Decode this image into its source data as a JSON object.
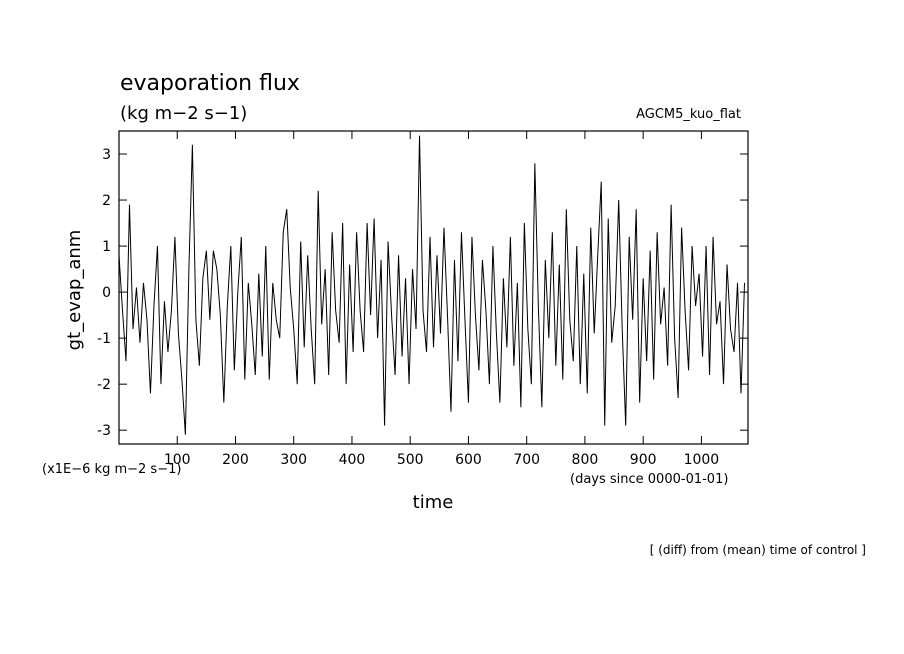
{
  "chart_data": {
    "type": "line",
    "title": "evaporation flux",
    "subtitle": "(kg m−2 s−1)",
    "annotation_right": "AGCM5_kuo_flat",
    "y_label": "gt_evap_anm",
    "x_label": "time",
    "y_unit_note": "(x1E−6 kg m−2 s−1)",
    "x_unit_note": "(days since 0000-01-01)",
    "footnote": "[ (diff) from (mean) time of control ]",
    "xlim": [
      0,
      1080
    ],
    "ylim": [
      -3.3,
      3.5
    ],
    "xticks": [
      100,
      200,
      300,
      400,
      500,
      600,
      700,
      800,
      900,
      1000
    ],
    "yticks": [
      -3,
      -2,
      -1,
      0,
      1,
      2,
      3
    ],
    "x": [
      0,
      6,
      12,
      18,
      24,
      30,
      36,
      42,
      48,
      54,
      60,
      66,
      72,
      78,
      84,
      90,
      96,
      102,
      108,
      114,
      120,
      126,
      132,
      138,
      144,
      150,
      156,
      162,
      168,
      174,
      180,
      186,
      192,
      198,
      204,
      210,
      216,
      222,
      228,
      234,
      240,
      246,
      252,
      258,
      264,
      270,
      276,
      282,
      288,
      294,
      300,
      306,
      312,
      318,
      324,
      330,
      336,
      342,
      348,
      354,
      360,
      366,
      372,
      378,
      384,
      390,
      396,
      402,
      408,
      414,
      420,
      426,
      432,
      438,
      444,
      450,
      456,
      462,
      468,
      474,
      480,
      486,
      492,
      498,
      504,
      510,
      516,
      522,
      528,
      534,
      540,
      546,
      552,
      558,
      564,
      570,
      576,
      582,
      588,
      594,
      600,
      606,
      612,
      618,
      624,
      630,
      636,
      642,
      648,
      654,
      660,
      666,
      672,
      678,
      684,
      690,
      696,
      702,
      708,
      714,
      720,
      726,
      732,
      738,
      744,
      750,
      756,
      762,
      768,
      774,
      780,
      786,
      792,
      798,
      804,
      810,
      816,
      822,
      828,
      834,
      840,
      846,
      852,
      858,
      864,
      870,
      876,
      882,
      888,
      894,
      900,
      906,
      912,
      918,
      924,
      930,
      936,
      942,
      948,
      954,
      960,
      966,
      972,
      978,
      984,
      990,
      996,
      1002,
      1008,
      1014,
      1020,
      1026,
      1032,
      1038,
      1044,
      1050,
      1056,
      1062,
      1068,
      1074
    ],
    "series": [
      {
        "color": "#000000",
        "values": [
          0.8,
          -0.4,
          -1.5,
          1.9,
          -0.8,
          0.1,
          -1.1,
          0.2,
          -0.6,
          -2.2,
          -0.3,
          1.0,
          -2.0,
          -0.2,
          -1.3,
          -0.4,
          1.2,
          -0.9,
          -1.9,
          -3.1,
          0.5,
          3.2,
          -0.6,
          -1.6,
          0.3,
          0.9,
          -0.6,
          0.9,
          0.5,
          -0.5,
          -2.4,
          -0.3,
          1.0,
          -1.7,
          0.0,
          1.2,
          -1.9,
          0.2,
          -0.7,
          -1.8,
          0.4,
          -1.4,
          1.0,
          -1.9,
          0.2,
          -0.6,
          -1.0,
          1.3,
          1.8,
          0.1,
          -0.8,
          -2.0,
          1.1,
          -1.2,
          0.8,
          -0.8,
          -2.0,
          2.2,
          -0.7,
          0.5,
          -1.8,
          1.3,
          -0.4,
          -1.1,
          1.5,
          -2.0,
          0.6,
          -1.3,
          1.3,
          -0.4,
          -1.3,
          1.5,
          -0.5,
          1.6,
          -1.0,
          0.7,
          -2.9,
          1.1,
          -0.5,
          -1.8,
          0.8,
          -1.4,
          0.3,
          -2.0,
          0.5,
          -0.8,
          3.4,
          -0.4,
          -1.3,
          1.2,
          -1.2,
          0.8,
          -0.9,
          1.4,
          -0.5,
          -2.6,
          0.7,
          -1.5,
          1.3,
          -0.6,
          -2.4,
          1.2,
          -0.5,
          -1.7,
          0.7,
          -0.4,
          -2.0,
          1.0,
          -0.9,
          -2.4,
          0.3,
          -1.2,
          1.2,
          -1.6,
          0.2,
          -2.5,
          1.5,
          -0.8,
          -2.0,
          2.8,
          -0.3,
          -2.5,
          0.7,
          -1.0,
          1.3,
          -1.6,
          0.6,
          -1.9,
          1.8,
          -0.6,
          -1.5,
          1.0,
          -2.0,
          0.4,
          -2.2,
          1.4,
          -0.9,
          0.8,
          2.4,
          -2.9,
          1.6,
          -1.1,
          -0.3,
          2.0,
          -0.8,
          -2.9,
          1.2,
          -0.6,
          1.8,
          -2.4,
          0.3,
          -1.5,
          0.9,
          -1.9,
          1.3,
          -0.7,
          0.1,
          -1.6,
          1.9,
          -1.0,
          -2.3,
          1.4,
          -0.4,
          -1.7,
          1.0,
          -0.3,
          0.4,
          -1.4,
          1.0,
          -1.8,
          1.2,
          -0.7,
          -0.2,
          -2.0,
          0.6,
          -0.8,
          -1.3,
          0.2,
          -2.2,
          0.2
        ]
      }
    ]
  }
}
